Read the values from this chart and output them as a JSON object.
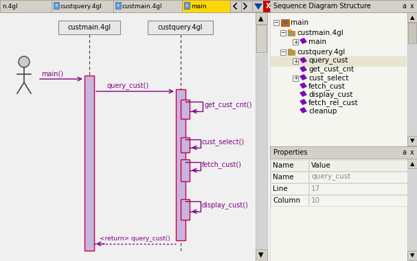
{
  "bg_color": "#f0f0f0",
  "toolbar_bg": "#d4d0c8",
  "tab_bg": "#d4d0c8",
  "tab_active_bg": "#ffd700",
  "tabs": [
    "n.4gl",
    "custquery.4gl",
    "custmain.4gl",
    "main"
  ],
  "seq_panel_bg": "#f5f5f0",
  "seq_panel_title": "Sequence Diagram Structure",
  "lifeline_color": "#333333",
  "activation_fill": "#c8b4e0",
  "activation_border": "#cc0044",
  "call_arrow_color": "#800080",
  "return_arrow_color": "#800080",
  "tree_bg": "#f5f5f0",
  "props_bg": "#f5f5f0",
  "highlight_bg": "#e8e4d0",
  "title_font_size": 8,
  "label_font_size": 7,
  "small_font_size": 6.5
}
